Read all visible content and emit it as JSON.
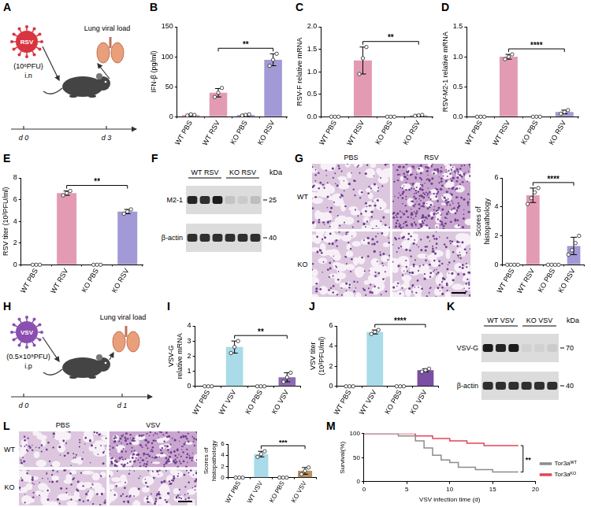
{
  "diagrams": [
    {
      "panel": "A",
      "virus": "RSV",
      "dose": "(10⁶PFU)",
      "route": "i.n",
      "readout": "Lung viral load",
      "days": [
        "d 0",
        "d 3"
      ],
      "color": "#d9343f"
    },
    {
      "panel": "H",
      "virus": "VSV",
      "dose": "(0.5×10⁸PFU)",
      "route": "i.p",
      "readout": "Lung viral load",
      "days": [
        "d 0",
        "d 1"
      ],
      "color": "#8a4fb0"
    }
  ],
  "blots": [
    {
      "panel": "F",
      "groups": [
        "WT RSV",
        "KO RSV"
      ],
      "unit": "kDa",
      "rows": [
        {
          "label": "M2-1",
          "marker": 25,
          "intensity": [
            0.9,
            0.85,
            0.95,
            0.12,
            0.08,
            0.15
          ]
        },
        {
          "label": "β-actin",
          "marker": 40,
          "intensity": [
            0.85,
            0.85,
            0.85,
            0.85,
            0.85,
            0.85
          ]
        }
      ]
    },
    {
      "panel": "K",
      "groups": [
        "WT VSV",
        "KO VSV"
      ],
      "unit": "kDa",
      "rows": [
        {
          "label": "VSV-G",
          "marker": 70,
          "intensity": [
            0.95,
            0.9,
            0.95,
            0.05,
            0.05,
            0.08
          ]
        },
        {
          "label": "β-actin",
          "marker": 40,
          "intensity": [
            0.85,
            0.85,
            0.85,
            0.85,
            0.85,
            0.85
          ]
        }
      ]
    }
  ],
  "chart_data": [
    {
      "panel": "B",
      "type": "bar",
      "y_label": "IFN-β (pg/ml)",
      "categories": [
        "WT PBS",
        "WT RSV",
        "KO PBS",
        "KO RSV"
      ],
      "values": [
        3,
        40,
        3,
        95
      ],
      "errors": [
        1,
        7,
        1,
        10
      ],
      "points": [
        [
          2,
          4,
          3
        ],
        [
          33,
          40,
          48
        ],
        [
          2,
          3,
          4
        ],
        [
          85,
          95,
          105
        ]
      ],
      "colors": [
        "#e39bb3",
        "#e39bb3",
        "#a19ad6",
        "#a19ad6"
      ],
      "ylim": [
        0,
        150
      ],
      "yticks": [
        0,
        50,
        100,
        150
      ],
      "grid": false,
      "annotations": [
        {
          "text": "**",
          "between": [
            "WT RSV",
            "KO RSV"
          ]
        }
      ]
    },
    {
      "panel": "C",
      "type": "bar",
      "y_label": "RSV-F relative mRNA",
      "categories": [
        "WT PBS",
        "WT RSV",
        "KO PBS",
        "KO RSV"
      ],
      "values": [
        0,
        1.25,
        0,
        0.03
      ],
      "errors": [
        0,
        0.3,
        0,
        0.01
      ],
      "points": [
        [
          0,
          0,
          0
        ],
        [
          0.95,
          1.3,
          1.55
        ],
        [
          0,
          0,
          0
        ],
        [
          0.02,
          0.03,
          0.04
        ]
      ],
      "colors": [
        "#e39bb3",
        "#e39bb3",
        "#a19ad6",
        "#a19ad6"
      ],
      "ylim": [
        0,
        2
      ],
      "yticks": [
        {
          "value": 0,
          "label": "0.0"
        },
        0.5,
        {
          "value": 1,
          "label": "1.0"
        },
        1.5,
        {
          "value": 2,
          "label": "2.0"
        }
      ],
      "grid": false,
      "annotations": [
        {
          "text": "**",
          "between": [
            "WT RSV",
            "KO RSV"
          ]
        }
      ]
    },
    {
      "panel": "D",
      "type": "bar",
      "y_label": "RSV-M2-1 relative mRNA",
      "categories": [
        "WT PBS",
        "WT RSV",
        "KO PBS",
        "KO RSV"
      ],
      "values": [
        0,
        1.0,
        0,
        0.08
      ],
      "errors": [
        0,
        0.04,
        0,
        0.03
      ],
      "points": [
        [
          0,
          0,
          0
        ],
        [
          0.96,
          1.0,
          1.04
        ],
        [
          0,
          0,
          0
        ],
        [
          0.05,
          0.08,
          0.11
        ]
      ],
      "colors": [
        "#e39bb3",
        "#e39bb3",
        "#a19ad6",
        "#a19ad6"
      ],
      "ylim": [
        0,
        1.5
      ],
      "yticks": [
        {
          "value": 0,
          "label": "0.0"
        },
        0.5,
        {
          "value": 1,
          "label": "1.0"
        },
        1.5
      ],
      "grid": false,
      "annotations": [
        {
          "text": "****",
          "between": [
            "WT RSV",
            "KO RSV"
          ]
        }
      ]
    },
    {
      "panel": "E",
      "type": "bar",
      "y_label": "RSV titer (10³PFU/ml)",
      "categories": [
        "WT PBS",
        "WT RSV",
        "KO PBS",
        "KO RSV"
      ],
      "values": [
        0,
        6.6,
        0,
        4.9
      ],
      "errors": [
        0,
        0.2,
        0,
        0.2
      ],
      "points": [
        [
          0,
          0,
          0
        ],
        [
          6.4,
          6.6,
          6.8
        ],
        [
          0,
          0,
          0
        ],
        [
          4.7,
          4.9,
          5.1
        ]
      ],
      "colors": [
        "#e39bb3",
        "#e39bb3",
        "#a19ad6",
        "#a19ad6"
      ],
      "ylim": [
        0,
        8
      ],
      "yticks": [
        0,
        2,
        4,
        6,
        8
      ],
      "grid": false,
      "annotations": [
        {
          "text": "**",
          "between": [
            "WT RSV",
            "KO RSV"
          ]
        }
      ]
    },
    {
      "panel": "G",
      "type": "bar",
      "y_label": "Scores of histopathology",
      "categories": [
        "WT PBS",
        "WT RSV",
        "KO PBS",
        "KO RSV"
      ],
      "values": [
        0,
        4.8,
        0,
        1.3
      ],
      "errors": [
        0,
        0.5,
        0,
        0.6
      ],
      "points": [
        [
          0,
          0,
          0,
          0
        ],
        [
          4.2,
          4.6,
          5.0,
          5.3
        ],
        [
          0,
          0,
          0,
          0
        ],
        [
          0.7,
          1.0,
          1.5,
          2.0
        ]
      ],
      "colors": [
        "#e39bb3",
        "#e39bb3",
        "#a19ad6",
        "#a19ad6"
      ],
      "ylim": [
        0,
        6
      ],
      "yticks": [
        0,
        2,
        4,
        6
      ],
      "grid": false,
      "annotations": [
        {
          "text": "****",
          "between": [
            "WT RSV",
            "KO RSV"
          ]
        }
      ],
      "images": {
        "columns": [
          "PBS",
          "RSV"
        ],
        "rows": [
          "WT",
          "KO"
        ]
      }
    },
    {
      "panel": "I",
      "type": "bar",
      "y_label": "VSV-G relative mRNA",
      "categories": [
        "WT PBS",
        "WT VSV",
        "KO PBS",
        "KO VSV"
      ],
      "values": [
        0,
        2.6,
        0,
        0.6
      ],
      "errors": [
        0,
        0.4,
        0,
        0.3
      ],
      "points": [
        [
          0,
          0,
          0
        ],
        [
          2.2,
          2.6,
          3.0
        ],
        [
          0,
          0,
          0
        ],
        [
          0.3,
          0.6,
          0.9
        ]
      ],
      "colors": [
        "#a9dbe8",
        "#a9dbe8",
        "#8c6bb1",
        "#8c6bb1"
      ],
      "ylim": [
        0,
        4
      ],
      "yticks": [
        0,
        1,
        2,
        3,
        4
      ],
      "grid": false,
      "annotations": [
        {
          "text": "**",
          "between": [
            "WT VSV",
            "KO VSV"
          ]
        }
      ]
    },
    {
      "panel": "J",
      "type": "bar",
      "y_label": "VSV titer (10³PFU/ml)",
      "categories": [
        "WT PBS",
        "WT VSV",
        "KO PBS",
        "KO VSV"
      ],
      "values": [
        0,
        5.4,
        0,
        1.6
      ],
      "errors": [
        0,
        0.2,
        0,
        0.15
      ],
      "points": [
        [
          0,
          0,
          0
        ],
        [
          5.2,
          5.4,
          5.6
        ],
        [
          0,
          0,
          0
        ],
        [
          1.45,
          1.6,
          1.75
        ]
      ],
      "colors": [
        "#a9dbe8",
        "#a9dbe8",
        "#7b4fa3",
        "#7b4fa3"
      ],
      "ylim": [
        0,
        6
      ],
      "yticks": [
        0,
        2,
        4,
        6
      ],
      "grid": false,
      "annotations": [
        {
          "text": "****",
          "between": [
            "WT VSV",
            "KO VSV"
          ]
        }
      ]
    },
    {
      "panel": "L",
      "type": "bar",
      "y_label": "Scores of histopathology",
      "categories": [
        "WT PBS",
        "WT VSV",
        "KO PBS",
        "KO VSV"
      ],
      "values": [
        0,
        4.2,
        0,
        1.2
      ],
      "errors": [
        0,
        0.5,
        0,
        0.6
      ],
      "points": [
        [
          0,
          0,
          0
        ],
        [
          3.7,
          4.2,
          4.7
        ],
        [
          0,
          0,
          0
        ],
        [
          0.6,
          1.2,
          1.8
        ]
      ],
      "colors": [
        "#a9dbe8",
        "#a9dbe8",
        "#b8935e",
        "#b8935e"
      ],
      "ylim": [
        0,
        6
      ],
      "yticks": [
        0,
        2,
        4,
        6
      ],
      "grid": false,
      "annotations": [
        {
          "text": "***",
          "between": [
            "WT VSV",
            "KO VSV"
          ]
        }
      ],
      "images": {
        "columns": [
          "PBS",
          "VSV"
        ],
        "rows": [
          "WT",
          "KO"
        ]
      }
    },
    {
      "panel": "M",
      "type": "line",
      "x_label": "VSV infection time (d)",
      "y_label": "Survival(%)",
      "series": [
        {
          "name": "Tor3aᵂᵀ",
          "color": "#8c8c8c",
          "x": [
            0,
            4,
            6,
            7,
            8,
            9,
            10,
            11,
            13,
            15,
            18
          ],
          "values": [
            100,
            95,
            85,
            70,
            55,
            45,
            40,
            30,
            25,
            20,
            20
          ]
        },
        {
          "name": "Tor3aᴷᴼ",
          "color": "#e0455a",
          "x": [
            0,
            6,
            8,
            10,
            12,
            14,
            18
          ],
          "values": [
            100,
            95,
            90,
            85,
            80,
            75,
            75
          ]
        }
      ],
      "xlim": [
        0,
        20
      ],
      "xticks": [
        0,
        5,
        10,
        15,
        20
      ],
      "ylim": [
        0,
        100
      ],
      "yticks": [
        0,
        50,
        100
      ],
      "grid": false,
      "legend": "right",
      "annotations": [
        {
          "text": "**",
          "between": [
            "Tor3aᵂᵀ",
            "Tor3aᴷᴼ"
          ]
        }
      ]
    }
  ]
}
